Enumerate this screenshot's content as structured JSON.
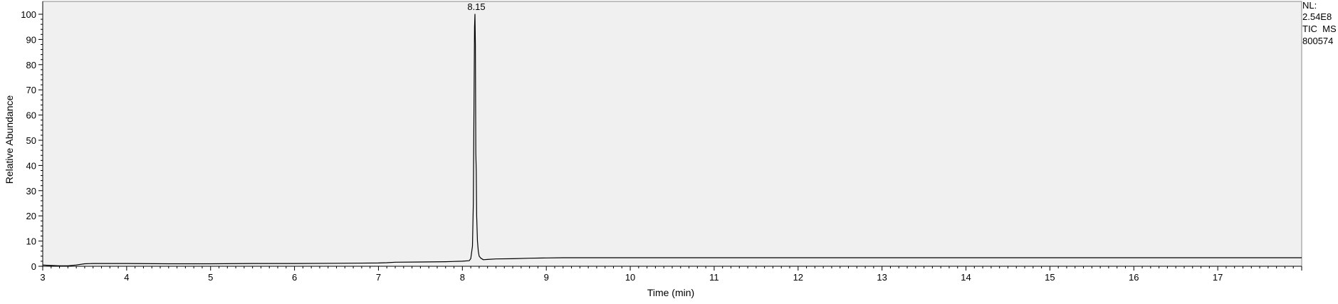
{
  "chart_data": {
    "type": "line",
    "xlabel": "Time (min)",
    "ylabel": "Relative Abundance",
    "xlim": [
      3.0,
      18.0
    ],
    "ylim": [
      0,
      100
    ],
    "x_ticks": [
      "3",
      "4",
      "5",
      "6",
      "7",
      "8",
      "9",
      "10",
      "11",
      "12",
      "13",
      "14",
      "15",
      "16",
      "17"
    ],
    "y_ticks": [
      "0",
      "10",
      "20",
      "30",
      "40",
      "50",
      "60",
      "70",
      "80",
      "90",
      "100"
    ],
    "grid": false,
    "peak_label": "8.15",
    "info": [
      "NL:",
      "2.54E8",
      "TIC  MS",
      "800574"
    ],
    "series": [
      {
        "x": [
          3.0,
          3.05,
          3.1,
          3.2,
          3.3,
          3.4,
          3.5,
          3.6,
          4.0,
          4.5,
          5.0,
          5.5,
          6.0,
          6.5,
          7.0,
          7.1,
          7.2,
          7.5,
          7.8,
          8.0,
          8.08,
          8.1,
          8.12,
          8.13,
          8.14,
          8.145,
          8.15,
          8.155,
          8.16,
          8.165,
          8.17,
          8.18,
          8.19,
          8.2,
          8.22,
          8.25,
          8.3,
          8.4,
          8.6,
          8.8,
          9.0,
          9.2,
          10.0,
          11.0,
          12.0,
          13.0,
          14.0,
          15.0,
          16.0,
          17.0,
          18.0
        ],
        "y": [
          0.5,
          0.4,
          0.3,
          0.2,
          0.2,
          0.5,
          1.0,
          1.1,
          1.1,
          1.0,
          1.0,
          1.1,
          1.1,
          1.2,
          1.3,
          1.4,
          1.6,
          1.7,
          1.8,
          2.0,
          2.2,
          3.0,
          8.0,
          25.0,
          70.0,
          95.0,
          100.0,
          88.0,
          45.0,
          38.0,
          20.0,
          10.0,
          6.0,
          4.0,
          3.2,
          2.6,
          2.7,
          2.9,
          3.0,
          3.2,
          3.3,
          3.4,
          3.4,
          3.4,
          3.4,
          3.4,
          3.4,
          3.4,
          3.4,
          3.4,
          3.4
        ]
      }
    ]
  }
}
